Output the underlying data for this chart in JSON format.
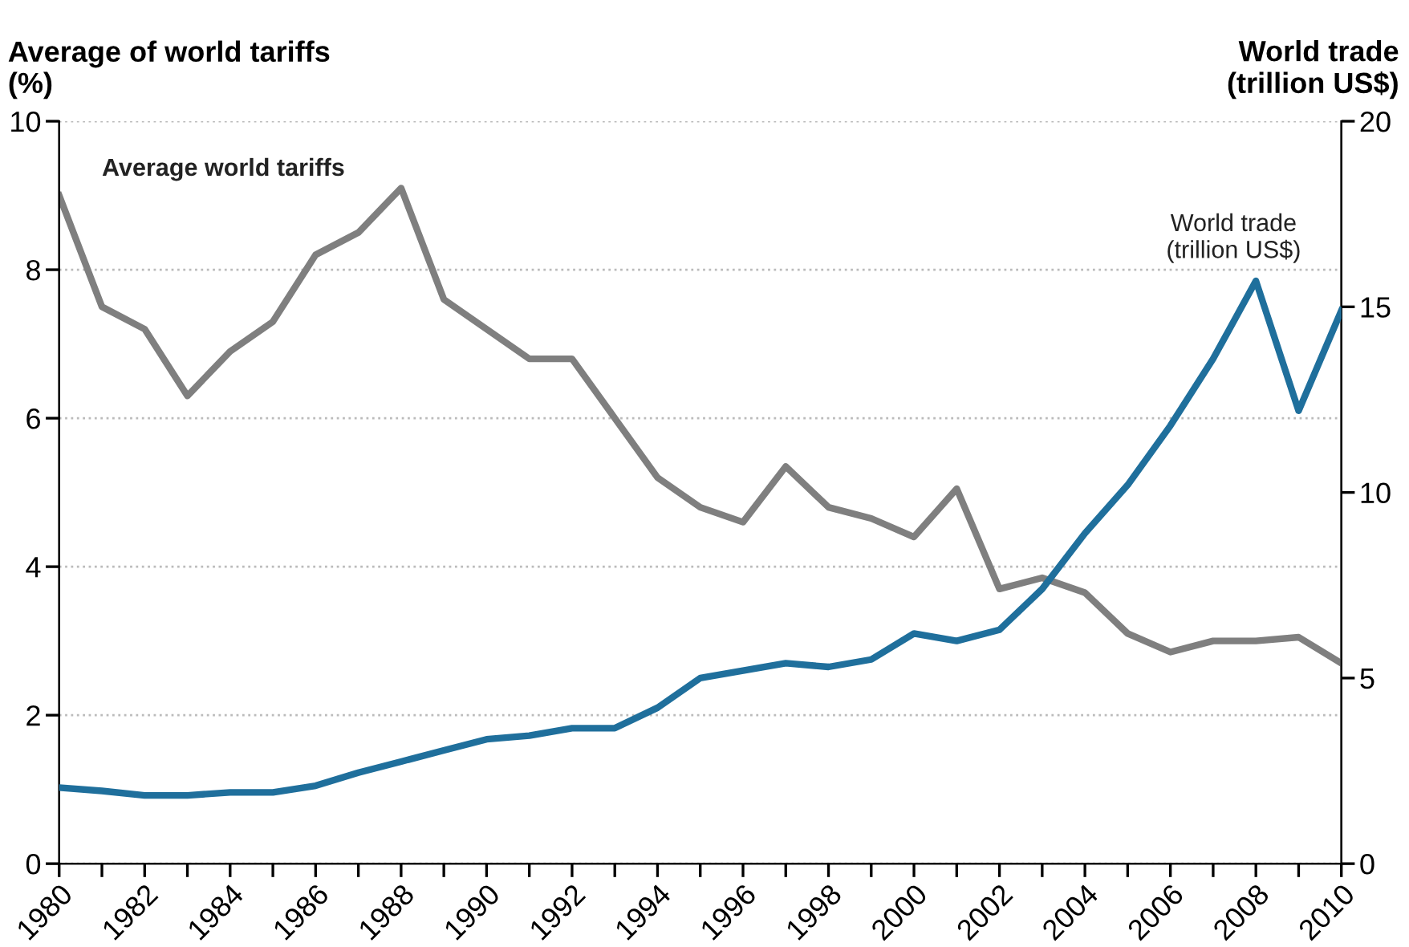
{
  "chart_data": {
    "type": "line",
    "ylabel": "Average of world tariffs\n(%)",
    "y2label": "World trade\n(trillion US$)",
    "x": [
      1980,
      1981,
      1982,
      1983,
      1984,
      1985,
      1986,
      1987,
      1988,
      1989,
      1990,
      1991,
      1992,
      1993,
      1994,
      1995,
      1996,
      1997,
      1998,
      1999,
      2000,
      2001,
      2002,
      2003,
      2004,
      2005,
      2006,
      2007,
      2008,
      2009,
      2010
    ],
    "series": [
      {
        "name": "Average world tariffs",
        "color": "#7f7f7f",
        "values": [
          9.0,
          7.5,
          7.2,
          6.3,
          6.9,
          7.3,
          8.2,
          8.5,
          9.1,
          7.6,
          7.2,
          6.8,
          6.8,
          6.0,
          5.2,
          4.8,
          4.6,
          5.35,
          4.8,
          4.65,
          4.4,
          5.05,
          3.7,
          3.85,
          3.65,
          3.1,
          2.85,
          3.0,
          3.0,
          3.05,
          2.7
        ]
      },
      {
        "name": "World trade\n(trillion US$)",
        "color": "#1f6f9c",
        "axis": "y2",
        "values": [
          2.05,
          1.96,
          1.84,
          1.84,
          1.92,
          1.92,
          2.1,
          2.45,
          2.75,
          3.05,
          3.35,
          3.45,
          3.65,
          3.65,
          4.2,
          5.0,
          5.2,
          5.4,
          5.3,
          5.5,
          6.2,
          6.0,
          6.3,
          7.4,
          8.9,
          10.2,
          11.8,
          13.6,
          15.7,
          12.2,
          14.9
        ]
      }
    ],
    "xlim": [
      1980,
      2010
    ],
    "xticks": [
      1980,
      {
        "value": 1981,
        "label": null
      },
      1982,
      {
        "value": 1983,
        "label": null
      },
      1984,
      {
        "value": 1985,
        "label": null
      },
      1986,
      {
        "value": 1987,
        "label": null
      },
      1988,
      {
        "value": 1989,
        "label": null
      },
      1990,
      {
        "value": 1991,
        "label": null
      },
      1992,
      {
        "value": 1993,
        "label": null
      },
      1994,
      {
        "value": 1995,
        "label": null
      },
      1996,
      {
        "value": 1997,
        "label": null
      },
      1998,
      {
        "value": 1999,
        "label": null
      },
      2000,
      {
        "value": 2001,
        "label": null
      },
      2002,
      {
        "value": 2003,
        "label": null
      },
      2004,
      {
        "value": 2005,
        "label": null
      },
      2006,
      {
        "value": 2007,
        "label": null
      },
      2008,
      {
        "value": 2009,
        "label": null
      },
      2010
    ],
    "ylim": [
      0,
      10
    ],
    "yticks": [
      0,
      2,
      4,
      6,
      8,
      10
    ],
    "y2lim": [
      0,
      20
    ],
    "y2ticks": [
      0,
      5,
      10,
      15,
      20
    ],
    "grid": "y",
    "legend": false,
    "marker": "none",
    "line_style": "solid"
  }
}
